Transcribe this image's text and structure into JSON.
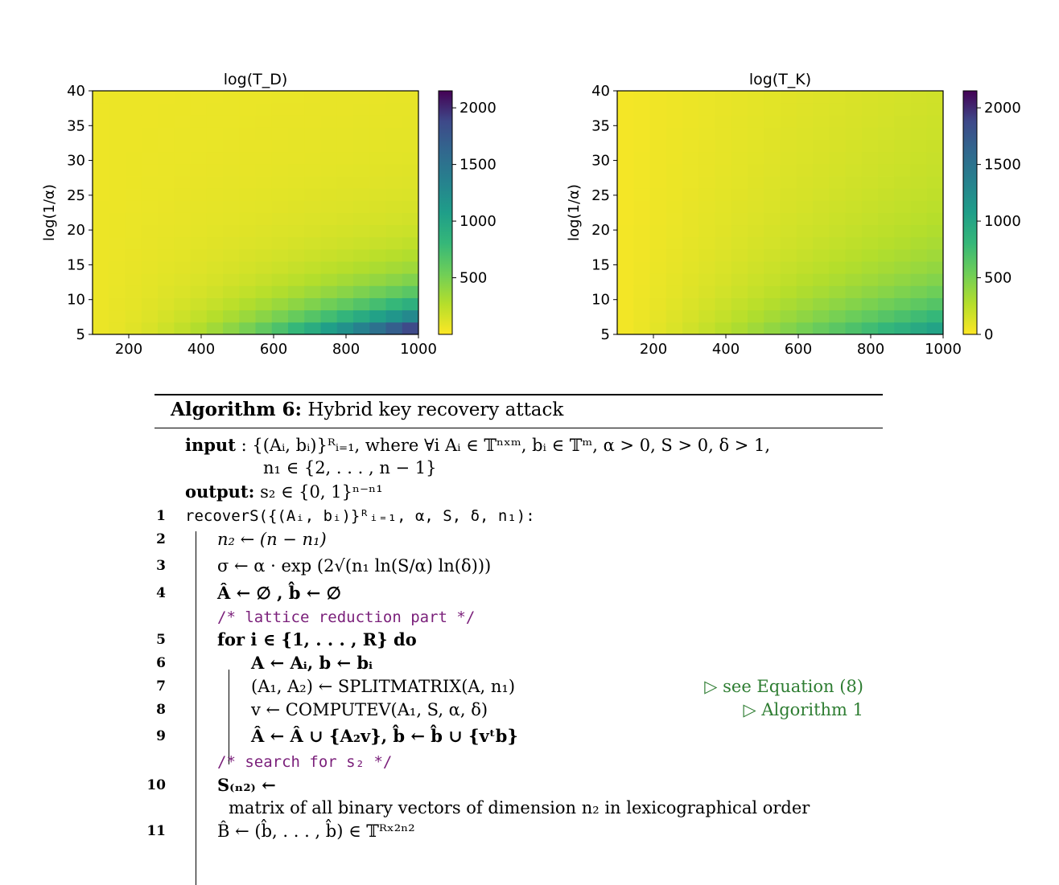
{
  "figure": {
    "chart_data": [
      {
        "type": "heatmap",
        "title": "log(T_D)",
        "ylabel": "log(1/α)",
        "xlabel": "",
        "x_ticks": [
          "200",
          "400",
          "600",
          "800",
          "1000"
        ],
        "y_ticks": [
          "5",
          "10",
          "15",
          "20",
          "25",
          "30",
          "35",
          "40"
        ],
        "xlim": [
          100,
          1000
        ],
        "ylim": [
          5,
          40
        ],
        "colorbar_ticks": [
          "500",
          "1000",
          "1500",
          "2000"
        ],
        "colorbar_range": [
          0,
          2150
        ],
        "colormap": "viridis_r",
        "nx": 20,
        "ny": 20,
        "max_value": 2150,
        "kind": "strong"
      },
      {
        "type": "heatmap",
        "title": "log(T_K)",
        "ylabel": "log(1/α)",
        "xlabel": "",
        "x_ticks": [
          "200",
          "400",
          "600",
          "800",
          "1000"
        ],
        "y_ticks": [
          "5",
          "10",
          "15",
          "20",
          "25",
          "30",
          "35",
          "40"
        ],
        "xlim": [
          100,
          1000
        ],
        "ylim": [
          5,
          40
        ],
        "colorbar_ticks": [
          "0",
          "500",
          "1000",
          "1500",
          "2000"
        ],
        "colorbar_range": [
          0,
          2150
        ],
        "colormap": "viridis_r",
        "nx": 20,
        "ny": 20,
        "max_value": 900,
        "kind": "mild"
      }
    ]
  },
  "algorithm": {
    "label": "Algorithm 6:",
    "title": "Hybrid key recovery attack",
    "input_kw": "input",
    "input_line1": ": {(Aᵢ, bᵢ)}ᴿᵢ₌₁, where ∀i Aᵢ ∈ 𝕋ⁿˣᵐ, bᵢ ∈ 𝕋ᵐ, α > 0, S > 0, δ > 1,",
    "input_line2": "n₁ ∈ {2, . . . , n − 1}",
    "output_kw": "output:",
    "output_text": "s₂ ∈ {0, 1}ⁿ⁻ⁿ¹",
    "lines": [
      {
        "num": "1",
        "text": "recoverS({(Aᵢ, bᵢ)}ᴿᵢ₌₁, α, S, δ, n₁):"
      },
      {
        "num": "2",
        "text": "n₂ ← (n − n₁)"
      },
      {
        "num": "3",
        "text": "σ ← α · exp (2√(n₁ ln(S/α) ln(δ)))"
      },
      {
        "num": "4",
        "text": "Â ← ∅ , b̂ ← ∅"
      },
      {
        "num": "",
        "text": "/* lattice reduction part */"
      },
      {
        "num": "5",
        "text": "for i ∈ {1, . . . , R} do"
      },
      {
        "num": "6",
        "text": "A ← Aᵢ, b ← bᵢ"
      },
      {
        "num": "7",
        "text": "(A₁, A₂) ← SPLITMATRIX(A, n₁)"
      },
      {
        "num": "8",
        "text": "v ← COMPUTEV(A₁, S, α, δ)"
      },
      {
        "num": "9",
        "text": "Â ← Â ∪ {A₂v}, b̂ ← b̂ ∪ {vᵗb}"
      },
      {
        "num": "",
        "text": "/* search for s₂ */"
      },
      {
        "num": "10",
        "text": "S₍ₙ₂₎ ←"
      },
      {
        "num": "",
        "text": "matrix of all binary vectors of dimension n₂ in lexicographical order"
      },
      {
        "num": "11",
        "text": "B̂ ← (b̂, . . . , b̂) ∈ 𝕋ᴿˣ²ⁿ²"
      }
    ],
    "note7": "▷ see Equation (8)",
    "note8": "▷  Algorithm 1"
  }
}
